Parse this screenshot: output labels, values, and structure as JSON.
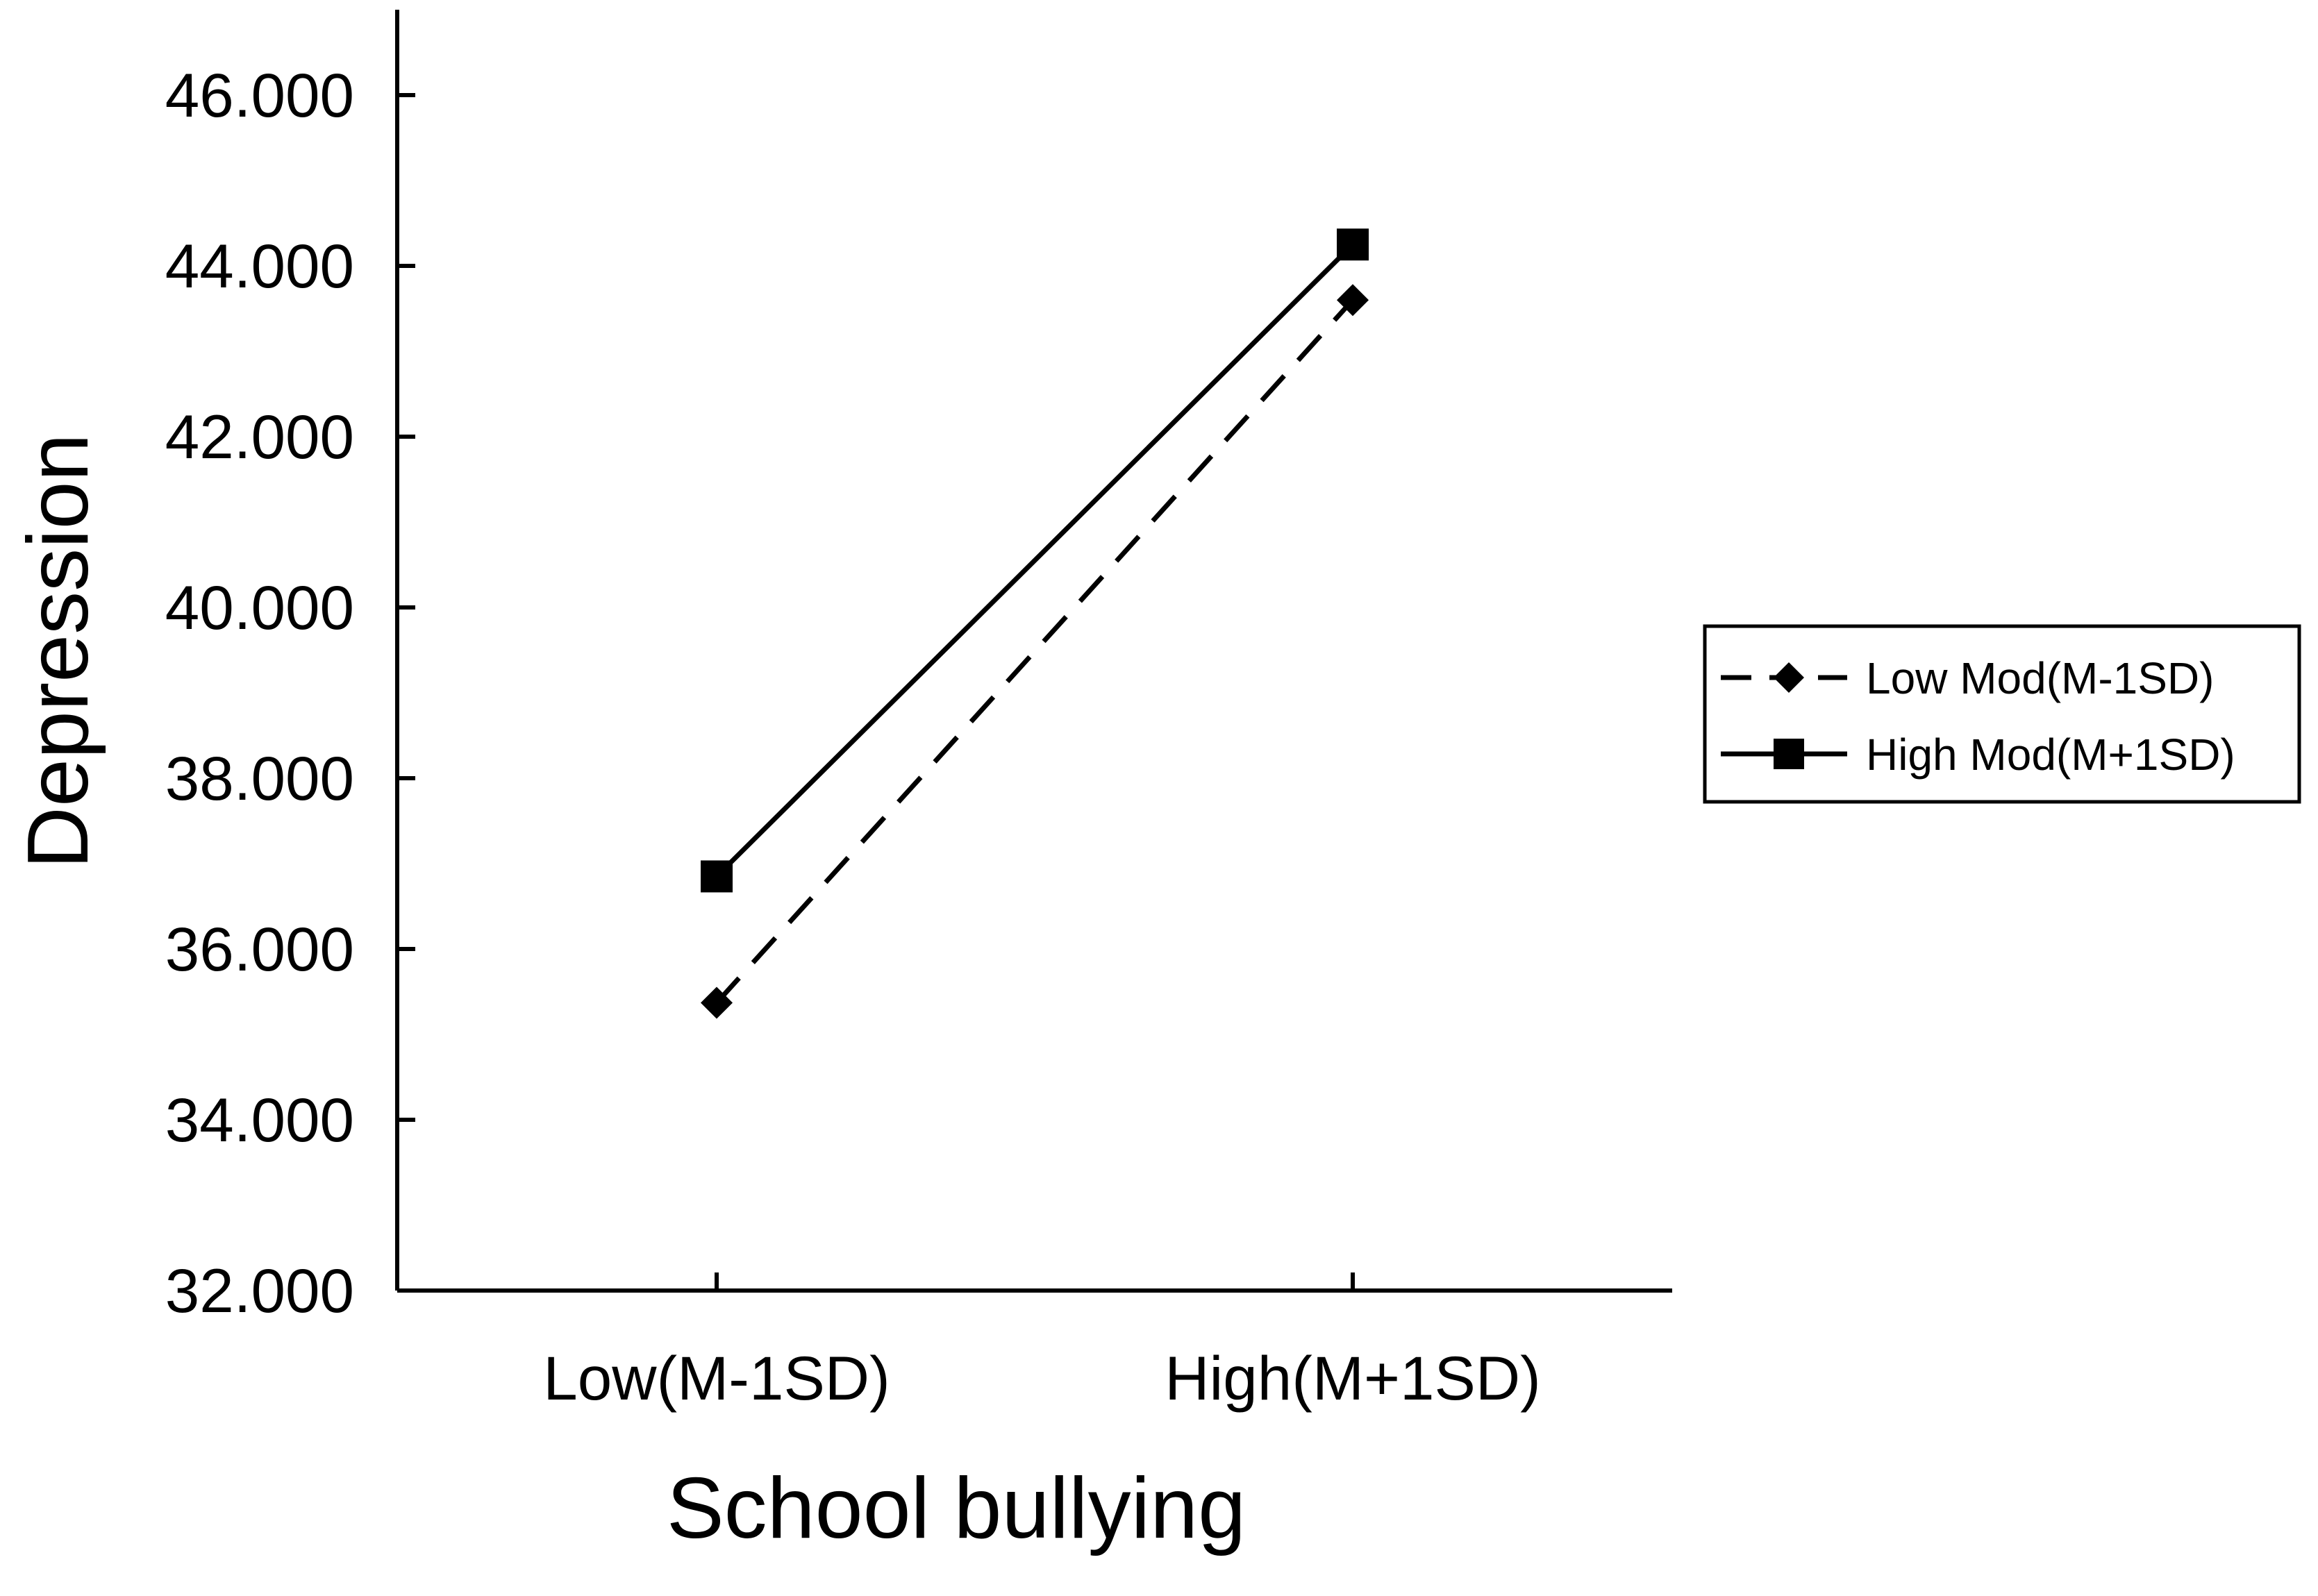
{
  "chart_data": {
    "type": "line",
    "title": "",
    "xlabel": "School bullying",
    "ylabel": "Depression",
    "categories": [
      "Low(M-1SD)",
      "High(M+1SD)"
    ],
    "ylim": [
      32,
      47
    ],
    "yticks": [
      32,
      34,
      36,
      38,
      40,
      42,
      44,
      46
    ],
    "ytick_labels": [
      "32.000",
      "34.000",
      "36.000",
      "38.000",
      "40.000",
      "42.000",
      "44.000",
      "46.000"
    ],
    "grid": false,
    "legend_position": "right",
    "series": [
      {
        "name": "Low Mod(M-1SD)",
        "values": [
          35.37,
          43.6
        ],
        "line_style": "dashed",
        "marker": "diamond",
        "color": "#000000"
      },
      {
        "name": "High Mod(M+1SD)",
        "values": [
          36.85,
          44.25
        ],
        "line_style": "solid",
        "marker": "square",
        "color": "#000000"
      }
    ]
  }
}
